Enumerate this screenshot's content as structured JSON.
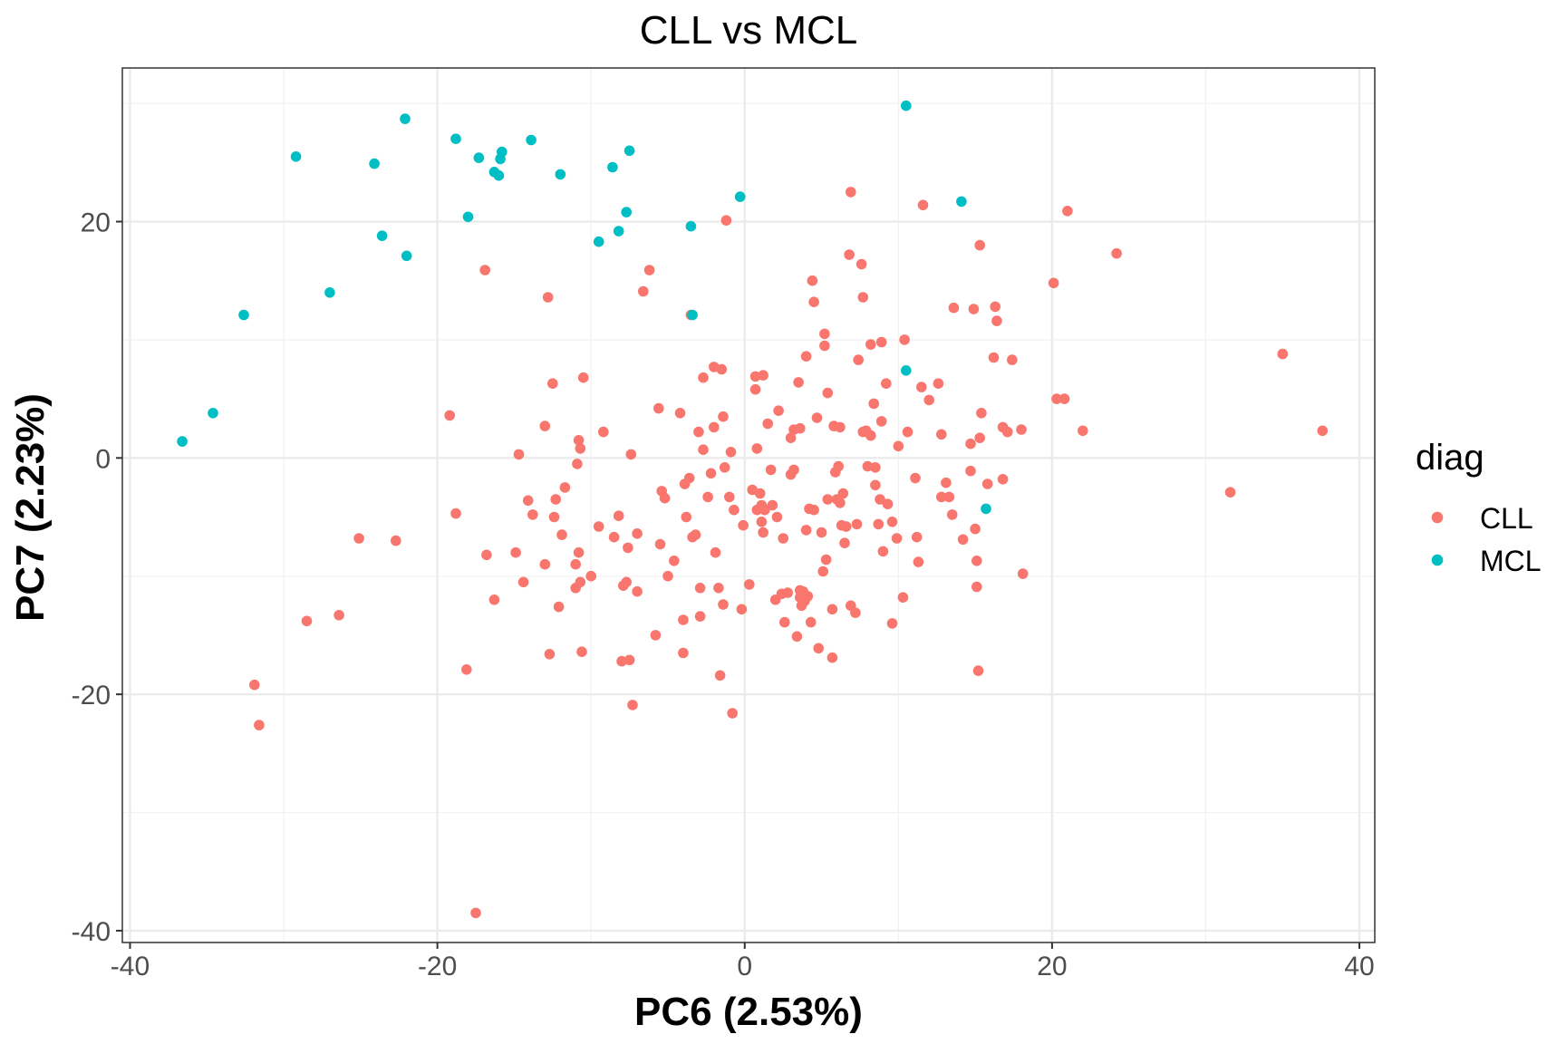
{
  "chart_data": {
    "type": "scatter",
    "title": "CLL vs MCL",
    "xlabel": "PC6 (2.53%)",
    "ylabel": "PC7 (2.23%)",
    "xlim": [
      -40.5,
      41
    ],
    "ylim": [
      -41,
      33
    ],
    "x_major_ticks": [
      -40,
      -20,
      0,
      20,
      40
    ],
    "x_tick_labels": [
      "-40",
      "-20",
      "0",
      "20",
      "40"
    ],
    "x_minor_ticks": [
      -30,
      -10,
      10,
      30
    ],
    "y_major_ticks": [
      -40,
      -20,
      0,
      20
    ],
    "y_tick_labels": [
      "-40",
      "-20",
      "0",
      "20"
    ],
    "y_minor_ticks": [
      -30,
      -10,
      10,
      30
    ],
    "grid": true,
    "legend": {
      "title": "diag",
      "position": "right"
    },
    "series": [
      {
        "name": "CLL",
        "color": "#f8766d",
        "points": [
          [
            -31.9,
            -19.2
          ],
          [
            -31.6,
            -22.6
          ],
          [
            -28.5,
            -13.8
          ],
          [
            -26.4,
            -13.3
          ],
          [
            -25.1,
            -6.8
          ],
          [
            -22.7,
            -7.0
          ],
          [
            -19.2,
            3.6
          ],
          [
            -18.8,
            -4.7
          ],
          [
            -18.1,
            -17.9
          ],
          [
            -17.5,
            -38.5
          ],
          [
            -16.9,
            15.9
          ],
          [
            -16.8,
            -8.2
          ],
          [
            -16.3,
            -12.0
          ],
          [
            -14.9,
            -8.0
          ],
          [
            -14.7,
            0.3
          ],
          [
            -14.4,
            -10.5
          ],
          [
            -14.1,
            -3.6
          ],
          [
            -13.8,
            -4.8
          ],
          [
            -13.0,
            -9.0
          ],
          [
            -13.0,
            2.7
          ],
          [
            -12.8,
            13.6
          ],
          [
            -12.7,
            -16.6
          ],
          [
            -12.5,
            6.3
          ],
          [
            -12.4,
            -5.0
          ],
          [
            -12.3,
            -3.5
          ],
          [
            -12.1,
            -12.6
          ],
          [
            -11.9,
            -6.5
          ],
          [
            -11.7,
            -2.5
          ],
          [
            -11.0,
            -11.0
          ],
          [
            -11.0,
            -9.0
          ],
          [
            -10.9,
            -0.5
          ],
          [
            -10.8,
            1.5
          ],
          [
            -10.8,
            -8.0
          ],
          [
            -10.7,
            0.8
          ],
          [
            -10.7,
            -10.5
          ],
          [
            -10.6,
            -16.4
          ],
          [
            -10.5,
            6.8
          ],
          [
            -10.0,
            -10.0
          ],
          [
            -9.5,
            -5.8
          ],
          [
            -9.2,
            2.2
          ],
          [
            -8.5,
            -6.7
          ],
          [
            -8.2,
            -4.9
          ],
          [
            -8.0,
            -17.2
          ],
          [
            -7.9,
            -10.8
          ],
          [
            -7.7,
            -10.5
          ],
          [
            -7.6,
            -7.6
          ],
          [
            -7.5,
            -17.1
          ],
          [
            -7.4,
            0.3
          ],
          [
            -7.3,
            -20.9
          ],
          [
            -7.0,
            -11.3
          ],
          [
            -7.0,
            -6.4
          ],
          [
            -6.6,
            14.1
          ],
          [
            -6.2,
            15.9
          ],
          [
            -5.8,
            -15.0
          ],
          [
            -5.6,
            4.2
          ],
          [
            -5.5,
            -7.3
          ],
          [
            -5.4,
            -2.8
          ],
          [
            -5.2,
            -3.4
          ],
          [
            -5.0,
            -10.0
          ],
          [
            -4.6,
            -8.7
          ],
          [
            -4.2,
            3.8
          ],
          [
            -4.0,
            -16.5
          ],
          [
            -4.0,
            -13.7
          ],
          [
            -3.9,
            -2.2
          ],
          [
            -3.8,
            -5.0
          ],
          [
            -3.6,
            -1.7
          ],
          [
            -3.5,
            12.1
          ],
          [
            -3.4,
            -6.7
          ],
          [
            -3.2,
            -6.5
          ],
          [
            -3.0,
            2.2
          ],
          [
            -2.9,
            -11.0
          ],
          [
            -2.9,
            -13.4
          ],
          [
            -2.7,
            0.7
          ],
          [
            -2.7,
            6.8
          ],
          [
            -2.4,
            -3.3
          ],
          [
            -2.2,
            -1.3
          ],
          [
            -2.0,
            7.7
          ],
          [
            -2.0,
            2.6
          ],
          [
            -1.9,
            -8.0
          ],
          [
            -1.7,
            -11.0
          ],
          [
            -1.6,
            -18.4
          ],
          [
            -1.5,
            7.5
          ],
          [
            -1.4,
            3.5
          ],
          [
            -1.4,
            -12.4
          ],
          [
            -1.3,
            -0.8
          ],
          [
            -1.2,
            20.1
          ],
          [
            -1.0,
            -3.3
          ],
          [
            -0.9,
            0.5
          ],
          [
            -0.8,
            -21.6
          ],
          [
            -0.7,
            -4.4
          ],
          [
            -0.2,
            -12.8
          ],
          [
            -0.1,
            -5.7
          ],
          [
            0.3,
            -10.7
          ],
          [
            0.5,
            -2.7
          ],
          [
            0.7,
            5.8
          ],
          [
            0.7,
            6.9
          ],
          [
            0.8,
            0.8
          ],
          [
            0.8,
            -4.4
          ],
          [
            1.0,
            -3.0
          ],
          [
            1.1,
            -4.0
          ],
          [
            1.1,
            -5.4
          ],
          [
            1.2,
            7.0
          ],
          [
            1.2,
            -6.3
          ],
          [
            1.3,
            -4.4
          ],
          [
            1.5,
            2.9
          ],
          [
            1.7,
            -1.0
          ],
          [
            1.8,
            -4.0
          ],
          [
            2.0,
            -12.0
          ],
          [
            2.1,
            -5.0
          ],
          [
            2.2,
            4.0
          ],
          [
            2.4,
            -11.5
          ],
          [
            2.5,
            -6.8
          ],
          [
            2.6,
            -13.9
          ],
          [
            2.8,
            -11.4
          ],
          [
            3.0,
            -1.4
          ],
          [
            3.0,
            1.7
          ],
          [
            3.2,
            2.4
          ],
          [
            3.2,
            -1.0
          ],
          [
            3.4,
            -15.1
          ],
          [
            3.5,
            6.4
          ],
          [
            3.6,
            2.5
          ],
          [
            3.6,
            -11.2
          ],
          [
            3.6,
            -11.8
          ],
          [
            3.7,
            -12.5
          ],
          [
            3.8,
            -11.3
          ],
          [
            3.9,
            -12.1
          ],
          [
            4.0,
            8.6
          ],
          [
            4.0,
            -6.1
          ],
          [
            4.1,
            -11.7
          ],
          [
            4.2,
            -4.3
          ],
          [
            4.3,
            -13.9
          ],
          [
            4.4,
            15.0
          ],
          [
            4.5,
            13.2
          ],
          [
            4.5,
            -4.4
          ],
          [
            4.7,
            3.4
          ],
          [
            4.8,
            -16.1
          ],
          [
            5.0,
            -6.3
          ],
          [
            5.1,
            -9.6
          ],
          [
            5.2,
            10.5
          ],
          [
            5.2,
            9.5
          ],
          [
            5.3,
            -8.6
          ],
          [
            5.4,
            5.5
          ],
          [
            5.4,
            -3.5
          ],
          [
            5.7,
            -12.8
          ],
          [
            5.7,
            -16.9
          ],
          [
            5.8,
            2.7
          ],
          [
            5.9,
            -1.2
          ],
          [
            6.0,
            -3.5
          ],
          [
            6.1,
            -0.7
          ],
          [
            6.2,
            2.6
          ],
          [
            6.2,
            -3.8
          ],
          [
            6.3,
            -5.7
          ],
          [
            6.4,
            -3.0
          ],
          [
            6.5,
            -7.2
          ],
          [
            6.6,
            -5.8
          ],
          [
            6.8,
            17.2
          ],
          [
            6.9,
            22.5
          ],
          [
            6.9,
            -12.5
          ],
          [
            7.2,
            -13.1
          ],
          [
            7.3,
            -5.6
          ],
          [
            7.4,
            8.3
          ],
          [
            7.6,
            16.4
          ],
          [
            7.7,
            13.6
          ],
          [
            7.7,
            2.2
          ],
          [
            7.9,
            2.3
          ],
          [
            8.0,
            -0.7
          ],
          [
            8.2,
            1.9
          ],
          [
            8.2,
            9.6
          ],
          [
            8.4,
            4.6
          ],
          [
            8.5,
            -2.3
          ],
          [
            8.5,
            -0.8
          ],
          [
            8.7,
            -5.6
          ],
          [
            8.8,
            -3.5
          ],
          [
            8.9,
            9.8
          ],
          [
            8.9,
            3.1
          ],
          [
            9.0,
            -7.9
          ],
          [
            9.2,
            6.3
          ],
          [
            9.3,
            -3.9
          ],
          [
            9.6,
            -5.4
          ],
          [
            9.6,
            -14.0
          ],
          [
            9.9,
            -6.8
          ],
          [
            10.0,
            1.0
          ],
          [
            10.3,
            -11.8
          ],
          [
            10.4,
            10.0
          ],
          [
            10.6,
            2.2
          ],
          [
            11.1,
            -1.7
          ],
          [
            11.2,
            -6.7
          ],
          [
            11.3,
            -8.8
          ],
          [
            11.5,
            6.0
          ],
          [
            11.6,
            21.4
          ],
          [
            12.0,
            4.9
          ],
          [
            12.6,
            6.3
          ],
          [
            12.8,
            2.0
          ],
          [
            12.8,
            -3.3
          ],
          [
            13.1,
            -2.1
          ],
          [
            13.3,
            -3.3
          ],
          [
            13.5,
            -4.8
          ],
          [
            13.6,
            12.7
          ],
          [
            14.2,
            -6.9
          ],
          [
            14.7,
            1.2
          ],
          [
            14.7,
            -1.1
          ],
          [
            14.9,
            12.6
          ],
          [
            15.0,
            -6.0
          ],
          [
            15.1,
            -8.7
          ],
          [
            15.1,
            -10.9
          ],
          [
            15.2,
            -18.0
          ],
          [
            15.3,
            1.7
          ],
          [
            15.3,
            18.0
          ],
          [
            15.4,
            3.8
          ],
          [
            15.8,
            -2.2
          ],
          [
            16.2,
            8.5
          ],
          [
            16.3,
            12.8
          ],
          [
            16.4,
            11.6
          ],
          [
            16.8,
            -1.8
          ],
          [
            16.8,
            2.6
          ],
          [
            17.1,
            2.2
          ],
          [
            17.4,
            8.3
          ],
          [
            18.0,
            2.4
          ],
          [
            18.1,
            -9.8
          ],
          [
            20.1,
            14.8
          ],
          [
            20.3,
            5.0
          ],
          [
            20.8,
            5.0
          ],
          [
            21.0,
            20.9
          ],
          [
            22.0,
            2.3
          ],
          [
            24.2,
            17.3
          ],
          [
            31.6,
            -2.9
          ],
          [
            35.0,
            8.8
          ],
          [
            37.6,
            2.3
          ]
        ]
      },
      {
        "name": "MCL",
        "color": "#00bfc4",
        "points": [
          [
            -36.6,
            1.4
          ],
          [
            -34.6,
            3.8
          ],
          [
            -32.6,
            12.1
          ],
          [
            -29.2,
            25.5
          ],
          [
            -27.0,
            14.0
          ],
          [
            -24.1,
            24.9
          ],
          [
            -23.6,
            18.8
          ],
          [
            -22.1,
            28.7
          ],
          [
            -22.0,
            17.1
          ],
          [
            -18.8,
            27.0
          ],
          [
            -18.0,
            20.4
          ],
          [
            -17.3,
            25.4
          ],
          [
            -16.3,
            24.2
          ],
          [
            -16.0,
            23.9
          ],
          [
            -15.9,
            25.3
          ],
          [
            -15.8,
            25.9
          ],
          [
            -13.9,
            26.9
          ],
          [
            -12.0,
            24.0
          ],
          [
            -9.5,
            18.3
          ],
          [
            -8.6,
            24.6
          ],
          [
            -8.2,
            19.2
          ],
          [
            -7.7,
            20.8
          ],
          [
            -7.5,
            26.0
          ],
          [
            -3.5,
            19.6
          ],
          [
            -3.4,
            12.1
          ],
          [
            -0.3,
            22.1
          ],
          [
            10.5,
            29.8
          ],
          [
            10.5,
            7.4
          ],
          [
            14.1,
            21.7
          ],
          [
            15.7,
            -4.3
          ]
        ]
      }
    ]
  }
}
